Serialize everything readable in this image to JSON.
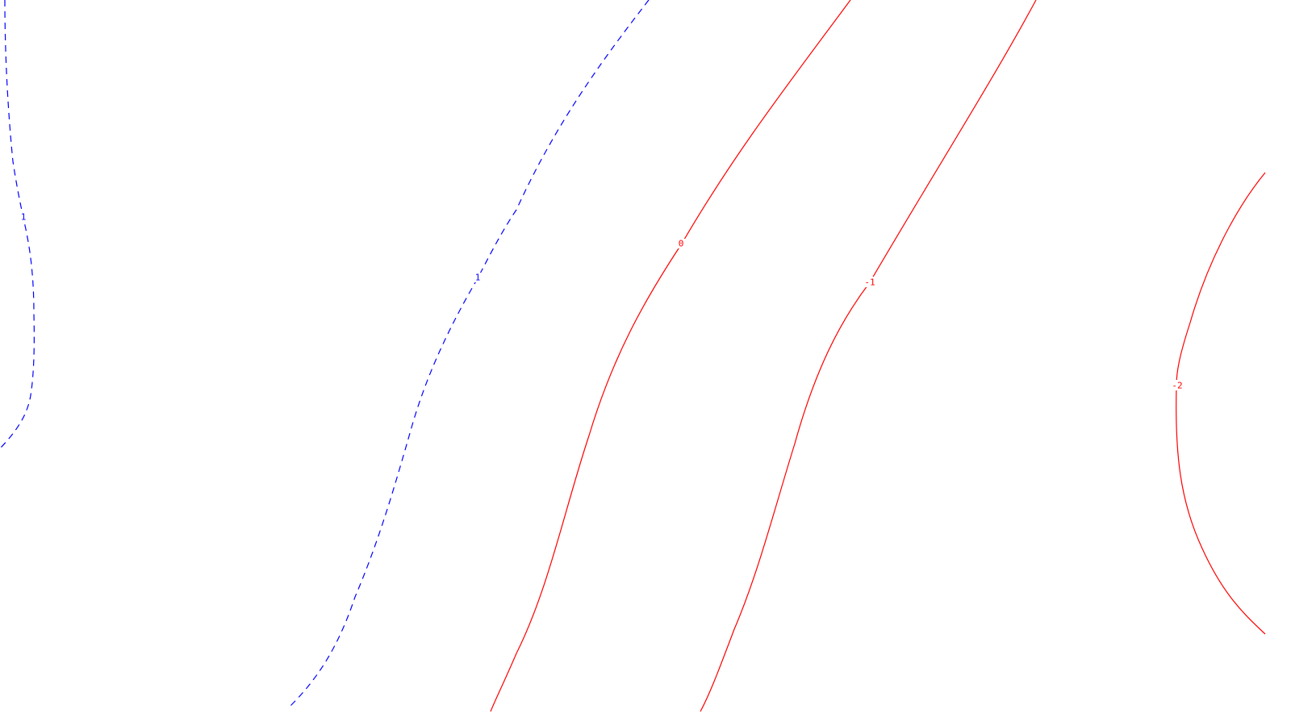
{
  "contours": [
    {
      "id": "neg-a",
      "level": "1",
      "sign": "negative"
    },
    {
      "id": "neg-b",
      "level": "1",
      "sign": "negative"
    },
    {
      "id": "zero",
      "level": "0",
      "sign": "positive"
    },
    {
      "id": "pos-1",
      "level": "-1",
      "sign": "positive"
    },
    {
      "id": "pos-2",
      "level": "-2",
      "sign": "positive"
    }
  ],
  "colors": {
    "positive": "#ff0000",
    "negative": "#0000ff",
    "background": "#ffffff"
  },
  "line_styles": {
    "positive": "solid",
    "negative": "dashed"
  }
}
